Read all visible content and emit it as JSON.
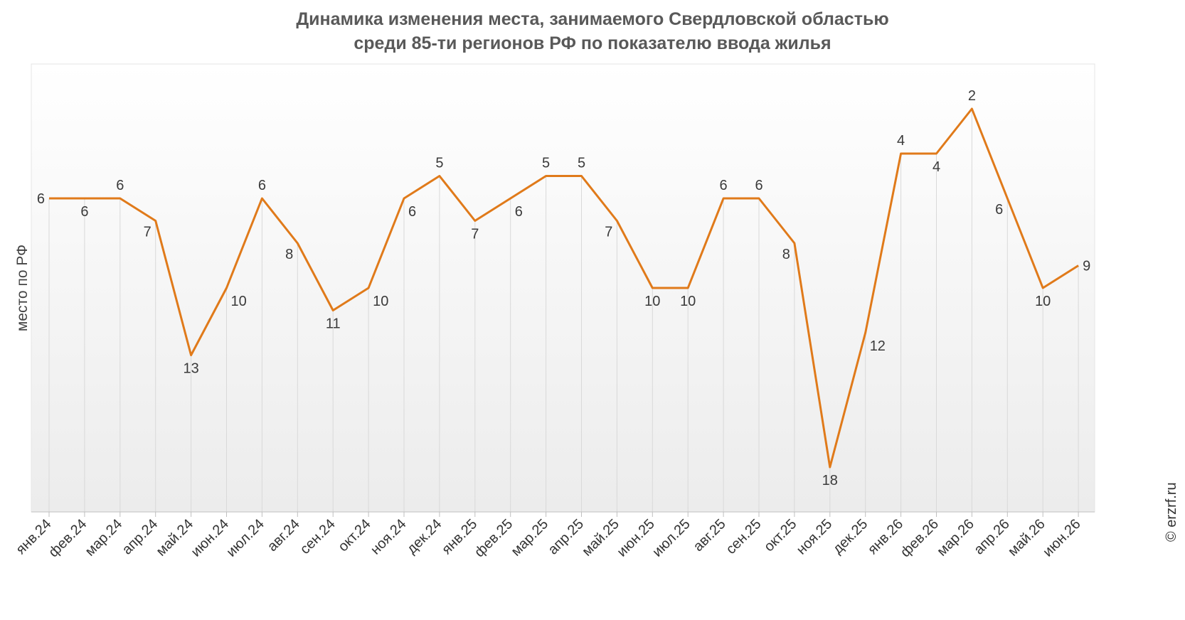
{
  "chart_data": {
    "type": "line",
    "title_lines": [
      "Динамика изменения места, занимаемого Свердловской областью",
      "среди 85-ти регионов РФ по показателю ввода жилья"
    ],
    "xlabel": "",
    "ylabel": "место по РФ",
    "y_reversed": true,
    "ylim": [
      20,
      0
    ],
    "grid": "vertical",
    "categories": [
      "янв.24",
      "фев.24",
      "мар.24",
      "апр.24",
      "май.24",
      "июн.24",
      "июл.24",
      "авг.24",
      "сен.24",
      "окт.24",
      "ноя.24",
      "дек.24",
      "янв.25",
      "фев.25",
      "мар.25",
      "апр.25",
      "май.25",
      "июн.25",
      "июл.25",
      "авг.25",
      "сен.25",
      "окт.25",
      "ноя.25",
      "дек.25",
      "янв.26",
      "фев.26",
      "мар.26",
      "апр.26",
      "май.26",
      "июн.26"
    ],
    "series": [
      {
        "color": "#E07A1A",
        "values": [
          6,
          6,
          6,
          7,
          13,
          10,
          6,
          8,
          11,
          10,
          6,
          5,
          7,
          6,
          5,
          5,
          7,
          10,
          10,
          6,
          6,
          8,
          18,
          12,
          4,
          4,
          2,
          6,
          10,
          9
        ]
      }
    ]
  },
  "watermark": "© erzrf.ru",
  "colors": {
    "line": "#E07A1A",
    "grid": "#d9d9d9",
    "plot_bg_top": "#ffffff",
    "plot_bg_bottom": "#ececec",
    "title": "#595959"
  }
}
